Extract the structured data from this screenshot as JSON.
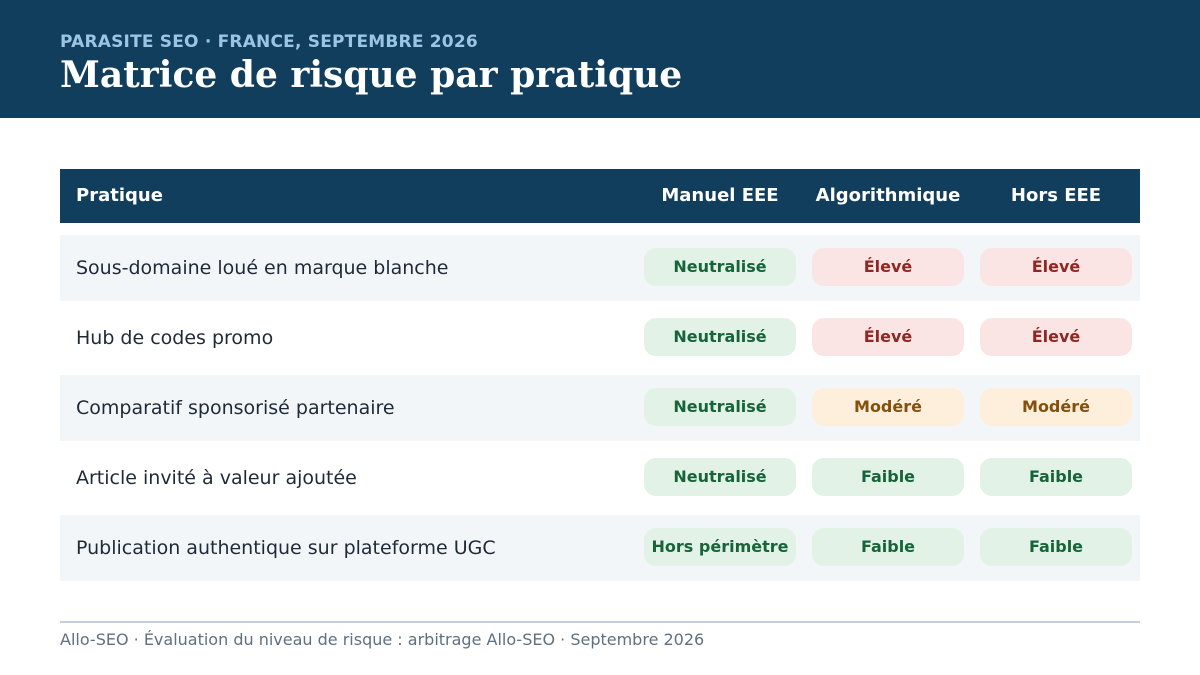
{
  "header": {
    "eyebrow": "PARASITE SEO · FRANCE, SEPTEMBRE 2026",
    "title": "Matrice de risque par pratique",
    "background_color": "#113e5c"
  },
  "table": {
    "columns": [
      "Pratique",
      "Manuel EEE",
      "Algorithmique",
      "Hors EEE"
    ],
    "rows": [
      {
        "label": "Sous-domaine loué en marque blanche",
        "cells": [
          {
            "text": "Neutralisé",
            "level": "green"
          },
          {
            "text": "Élevé",
            "level": "red"
          },
          {
            "text": "Élevé",
            "level": "red"
          }
        ]
      },
      {
        "label": "Hub de codes promo",
        "cells": [
          {
            "text": "Neutralisé",
            "level": "green"
          },
          {
            "text": "Élevé",
            "level": "red"
          },
          {
            "text": "Élevé",
            "level": "red"
          }
        ]
      },
      {
        "label": "Comparatif sponsorisé partenaire",
        "cells": [
          {
            "text": "Neutralisé",
            "level": "green"
          },
          {
            "text": "Modéré",
            "level": "orange"
          },
          {
            "text": "Modéré",
            "level": "orange"
          }
        ]
      },
      {
        "label": "Article invité à valeur ajoutée",
        "cells": [
          {
            "text": "Neutralisé",
            "level": "green"
          },
          {
            "text": "Faible",
            "level": "green"
          },
          {
            "text": "Faible",
            "level": "green"
          }
        ]
      },
      {
        "label": "Publication authentique sur plateforme UGC",
        "cells": [
          {
            "text": "Hors périmètre",
            "level": "green"
          },
          {
            "text": "Faible",
            "level": "green"
          },
          {
            "text": "Faible",
            "level": "green"
          }
        ]
      }
    ],
    "level_colors": {
      "green": {
        "bg": "#e2f2e6",
        "fg": "#17643a"
      },
      "red": {
        "bg": "#fbe5e4",
        "fg": "#8f2722"
      },
      "orange": {
        "bg": "#fdefdb",
        "fg": "#85500c"
      }
    }
  },
  "footer": {
    "text": "Allo-SEO · Évaluation du niveau de risque : arbitrage Allo-SEO · Septembre 2026"
  }
}
